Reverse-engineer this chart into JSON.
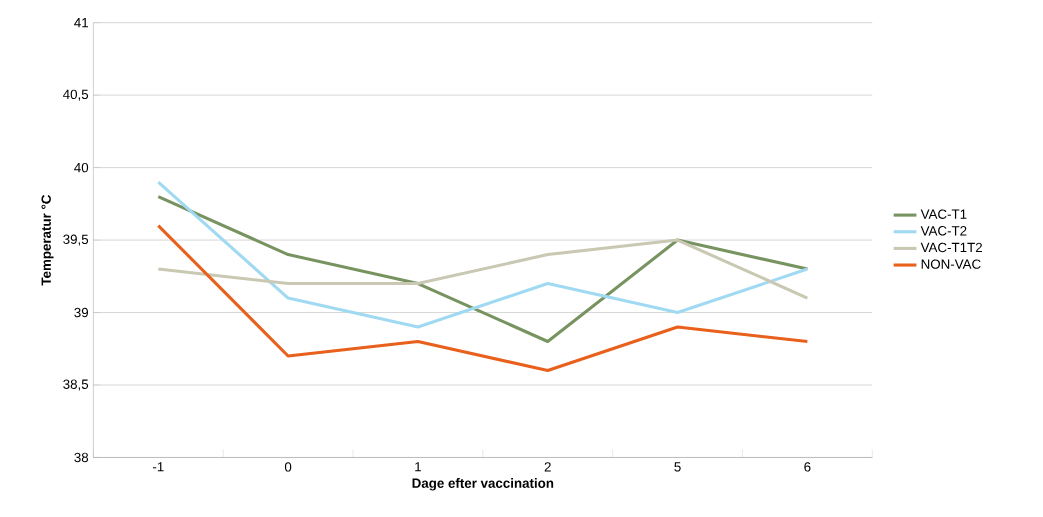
{
  "chart_data": {
    "type": "line",
    "xlabel": "Dage efter vaccination",
    "ylabel": "Temperatur °C",
    "categories": [
      "-1",
      "0",
      "1",
      "2",
      "5",
      "6"
    ],
    "series": [
      {
        "name": "VAC-T1",
        "color": "#77935f",
        "values": [
          39.8,
          39.4,
          39.2,
          38.8,
          39.5,
          39.3
        ]
      },
      {
        "name": "VAC-T2",
        "color": "#a0d9f2",
        "values": [
          39.9,
          39.1,
          38.9,
          39.2,
          39.0,
          39.3
        ]
      },
      {
        "name": "VAC-T1T2",
        "color": "#c9c8b3",
        "values": [
          39.3,
          39.2,
          39.2,
          39.4,
          39.5,
          39.1
        ]
      },
      {
        "name": "NON-VAC",
        "color": "#e8601c",
        "values": [
          39.6,
          38.7,
          38.8,
          38.6,
          38.9,
          38.8
        ]
      }
    ],
    "ylim": [
      38,
      41
    ],
    "yticks": [
      38,
      {
        "value": 38.5,
        "label": "38,5"
      },
      39,
      {
        "value": 39.5,
        "label": "39,5"
      },
      40,
      {
        "value": 40.5,
        "label": "40,5"
      },
      41
    ],
    "grid": "y",
    "legend": "right",
    "marker": "none",
    "line_style": "solid"
  }
}
